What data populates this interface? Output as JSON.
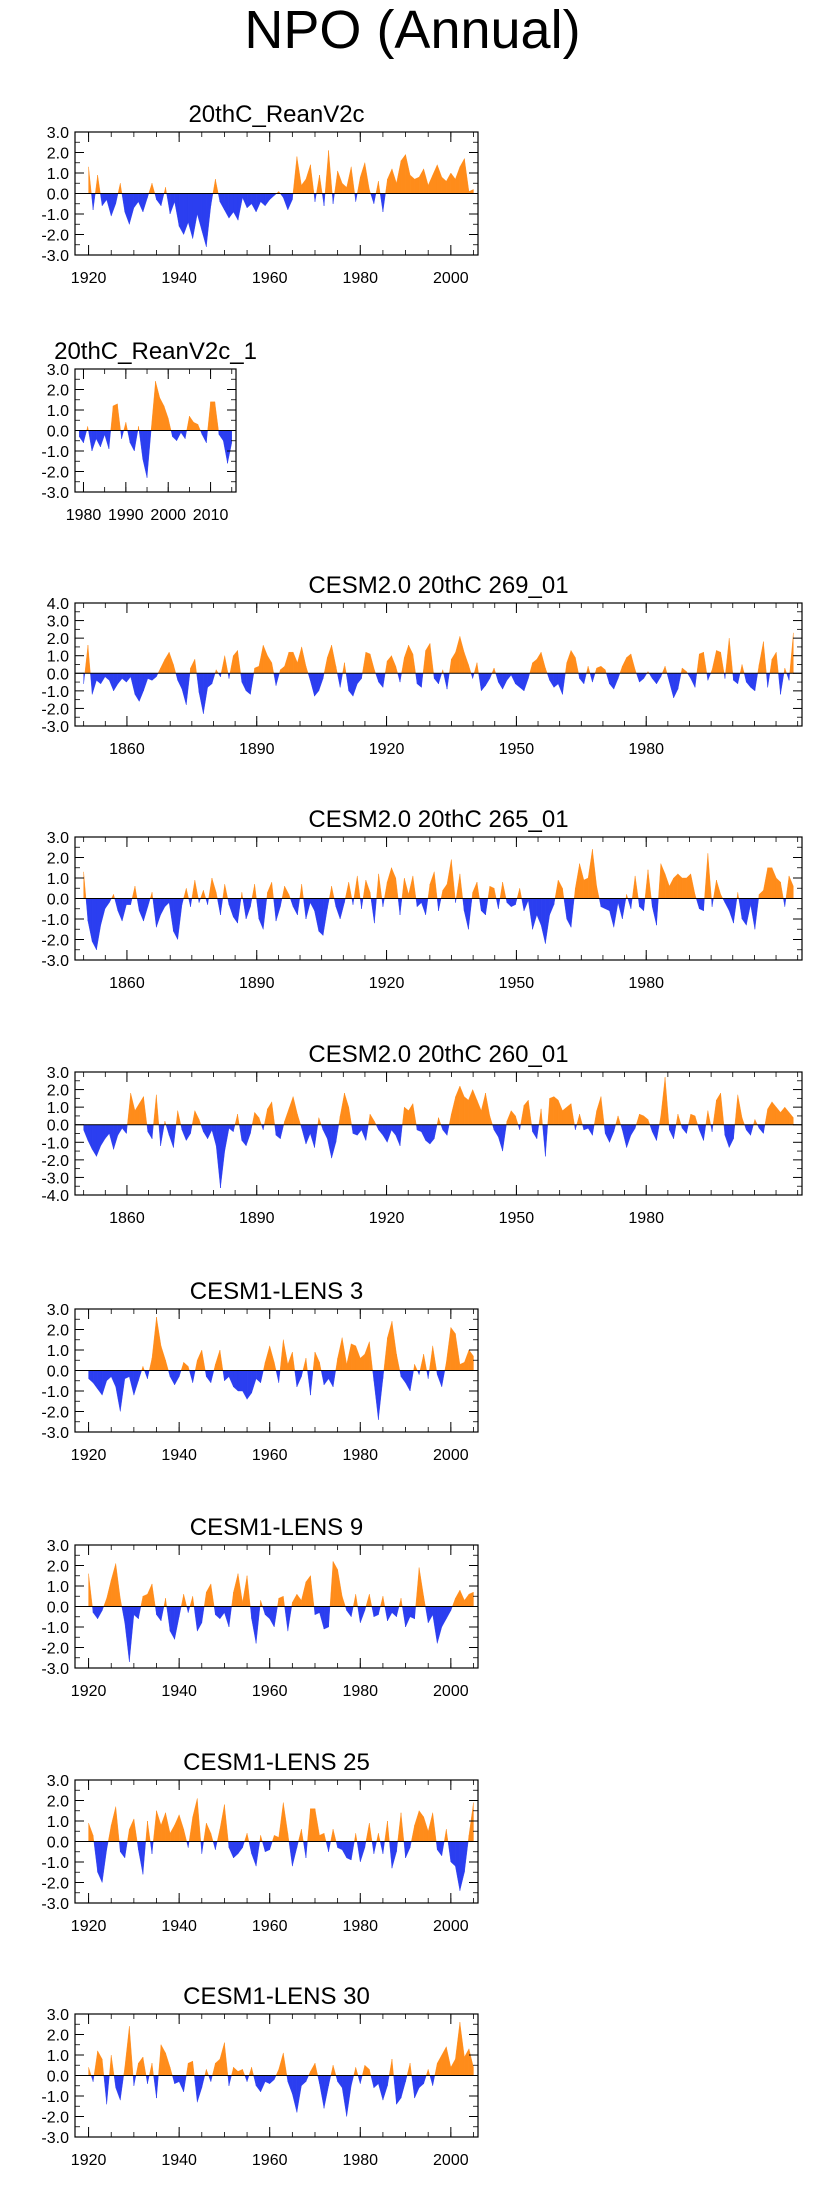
{
  "figure": {
    "title": "NPO (Annual)"
  },
  "colors": {
    "positive": "#ff8c1a",
    "negative": "#2b3ef0",
    "axis": "#000000"
  },
  "chart_data": [
    {
      "type": "area",
      "title": "20thC_ReanV2c",
      "xlim": [
        1917,
        2006
      ],
      "ylim": [
        -3,
        3
      ],
      "yticks": [
        "3.0",
        "2.0",
        "1.0",
        "0.0",
        "-1.0",
        "-2.0",
        "-3.0"
      ],
      "xticks": [
        "1920",
        "1940",
        "1960",
        "1980",
        "2000"
      ],
      "x_start": 1920,
      "x_end": 2005,
      "values": [
        1.3,
        -0.8,
        0.9,
        -0.6,
        -0.3,
        -1.1,
        -0.5,
        0.5,
        -0.9,
        -1.5,
        -0.7,
        -0.4,
        -0.9,
        -0.2,
        0.5,
        -0.3,
        -0.6,
        0.3,
        -1.0,
        -0.4,
        -1.6,
        -2.0,
        -1.4,
        -2.2,
        -1.0,
        -1.8,
        -2.6,
        -0.6,
        0.7,
        -0.4,
        -0.8,
        -1.2,
        -0.9,
        -1.3,
        -0.2,
        -0.7,
        -0.5,
        -0.9,
        -0.4,
        -0.6,
        -0.3,
        -0.1,
        0.1,
        -0.2,
        -0.8,
        -0.3,
        1.8,
        0.4,
        0.7,
        1.4,
        -0.4,
        0.9,
        -0.6,
        2.1,
        -0.5,
        1.1,
        0.5,
        0.3,
        1.3,
        -0.4,
        0.8,
        1.5,
        0.2,
        -0.5,
        0.6,
        -0.9,
        0.7,
        1.2,
        0.5,
        1.6,
        1.9,
        0.9,
        0.7,
        0.8,
        1.2,
        0.4,
        0.9,
        1.4,
        0.8,
        0.6,
        1.0,
        0.7,
        1.3,
        1.7,
        0.1,
        0.2
      ]
    },
    {
      "type": "area",
      "title": "20thC_ReanV2c_1",
      "xlim": [
        1978,
        2016
      ],
      "ylim": [
        -3,
        3
      ],
      "yticks": [
        "3.0",
        "2.0",
        "1.0",
        "0.0",
        "-1.0",
        "-2.0",
        "-3.0"
      ],
      "xticks": [
        "1980",
        "1990",
        "2000",
        "2010"
      ],
      "x_start": 1979,
      "x_end": 2015,
      "values": [
        -0.3,
        -0.6,
        0.2,
        -1.0,
        -0.4,
        -0.8,
        -0.2,
        -0.9,
        1.2,
        1.3,
        -0.4,
        0.4,
        -0.6,
        -1.0,
        0.2,
        -1.4,
        -2.3,
        0.1,
        2.4,
        1.6,
        1.2,
        0.6,
        -0.3,
        -0.5,
        -0.1,
        -0.4,
        0.7,
        0.4,
        0.3,
        -0.2,
        -0.6,
        1.4,
        1.4,
        -0.2,
        -0.5,
        -1.6,
        -0.6
      ]
    },
    {
      "type": "area",
      "title": "CESM2.0 20thC 269_01",
      "xlim": [
        1848,
        2016
      ],
      "ylim": [
        -3,
        4
      ],
      "yticks": [
        "4.0",
        "3.0",
        "2.0",
        "1.0",
        "0.0",
        "-1.0",
        "-2.0",
        "-3.0"
      ],
      "xticks": [
        "1860",
        "1890",
        "1920",
        "1950",
        "1980"
      ],
      "x_start": 1850,
      "x_end": 2014,
      "values": [
        -0.6,
        1.6,
        -1.2,
        -0.4,
        -0.6,
        -0.2,
        -0.4,
        -1.0,
        -0.6,
        -0.3,
        -0.5,
        -0.2,
        -1.2,
        -1.6,
        -1.0,
        -0.3,
        -0.4,
        -0.2,
        0.3,
        0.8,
        1.2,
        0.5,
        -0.4,
        -0.9,
        -1.8,
        0.3,
        0.8,
        -1.1,
        -2.3,
        -0.8,
        -0.6,
        0.2,
        -0.2,
        1.0,
        -0.3,
        1.0,
        1.3,
        -0.5,
        -1.0,
        -1.2,
        0.3,
        0.4,
        1.6,
        1.0,
        0.6,
        -0.7,
        0.2,
        0.4,
        1.2,
        1.2,
        0.6,
        1.5,
        0.4,
        -0.4,
        -1.3,
        -1.0,
        -0.3,
        0.9,
        1.6,
        0.4,
        -0.8,
        0.6,
        -1.0,
        -1.3,
        -0.6,
        -0.3,
        1.2,
        1.1,
        0.2,
        -0.5,
        -0.8,
        0.7,
        1.0,
        0.4,
        -0.5,
        0.9,
        1.6,
        1.1,
        -0.6,
        -0.8,
        1.3,
        1.7,
        -0.3,
        -0.6,
        0.2,
        -0.9,
        0.8,
        1.2,
        2.1,
        1.2,
        0.5,
        -0.3,
        0.6,
        -1.0,
        -0.7,
        -0.3,
        0.3,
        -0.5,
        -0.9,
        -0.4,
        -0.1,
        -0.6,
        -0.8,
        -1.0,
        -0.3,
        0.6,
        0.8,
        1.2,
        0.3,
        -0.4,
        -0.8,
        -0.6,
        -1.2,
        0.6,
        1.3,
        0.9,
        -0.3,
        -0.6,
        0.4,
        -0.5,
        0.3,
        0.4,
        0.2,
        -0.6,
        -0.9,
        -0.3,
        0.4,
        0.9,
        1.1,
        0.2,
        -0.5,
        -0.3,
        0.1,
        -0.3,
        -0.6,
        -0.2,
        0.4,
        -0.5,
        -1.4,
        -0.9,
        0.3,
        0.1,
        -0.3,
        -0.8,
        1.1,
        1.2,
        -0.4,
        0.2,
        1.3,
        1.2,
        -0.3,
        2.0,
        -0.4,
        -0.6,
        0.5,
        -0.5,
        -0.8,
        -1.0,
        0.5,
        1.8,
        -0.8,
        0.8,
        1.2,
        -1.2,
        0.3,
        -0.4,
        2.3
      ]
    },
    {
      "type": "area",
      "title": "CESM2.0 20thC 265_01",
      "xlim": [
        1848,
        2016
      ],
      "ylim": [
        -3,
        3
      ],
      "yticks": [
        "3.0",
        "2.0",
        "1.0",
        "0.0",
        "-1.0",
        "-2.0",
        "-3.0"
      ],
      "xticks": [
        "1860",
        "1890",
        "1920",
        "1950",
        "1980"
      ],
      "x_start": 1850,
      "x_end": 2014,
      "values": [
        1.3,
        -1.1,
        -2.1,
        -2.5,
        -1.3,
        -0.5,
        -0.2,
        0.2,
        -0.6,
        -1.1,
        -0.3,
        -0.3,
        0.6,
        -0.6,
        -1.1,
        -0.4,
        0.3,
        -1.4,
        -0.8,
        -0.4,
        -0.2,
        -1.6,
        -2.0,
        -0.3,
        0.5,
        -0.4,
        0.9,
        -0.2,
        0.4,
        -0.3,
        1.0,
        0.3,
        -0.8,
        0.7,
        -0.3,
        -0.9,
        -1.2,
        0.3,
        -1.0,
        -0.4,
        0.7,
        -1.0,
        -1.5,
        0.3,
        0.8,
        -1.1,
        -0.4,
        0.6,
        0.2,
        -0.4,
        -0.8,
        0.7,
        -1.0,
        -0.2,
        -0.6,
        -1.6,
        -1.8,
        -0.5,
        0.6,
        -0.4,
        -1.0,
        -0.2,
        0.8,
        -0.3,
        1.1,
        -0.5,
        0.9,
        0.3,
        -1.2,
        1.2,
        -0.4,
        0.8,
        1.5,
        1.0,
        -0.8,
        1.0,
        0.2,
        1.1,
        -0.4,
        -0.2,
        -0.8,
        0.7,
        1.3,
        -0.6,
        0.4,
        0.7,
        1.9,
        -0.2,
        1.2,
        -0.6,
        -1.5,
        0.3,
        0.8,
        -0.6,
        -0.8,
        0.6,
        0.5,
        -0.5,
        0.8,
        -0.2,
        -0.4,
        -0.3,
        0.5,
        -0.6,
        -0.1,
        -1.5,
        -0.8,
        -1.3,
        -2.2,
        -0.8,
        -0.3,
        0.9,
        0.5,
        -1.0,
        -1.4,
        0.5,
        1.7,
        0.9,
        1.0,
        2.4,
        0.6,
        -0.4,
        -0.5,
        -0.6,
        -1.4,
        -0.2,
        -1.0,
        0.2,
        -0.5,
        1.1,
        -0.4,
        -0.6,
        1.4,
        -0.4,
        -1.3,
        1.7,
        1.2,
        0.6,
        1.0,
        1.2,
        1.0,
        1.0,
        1.2,
        0.2,
        -0.5,
        -0.6,
        2.2,
        -0.4,
        0.9,
        0.2,
        -0.2,
        -0.6,
        -1.2,
        0.3,
        -1.0,
        -1.3,
        -0.3,
        -1.5,
        0.2,
        0.4,
        1.5,
        1.5,
        1.0,
        0.8,
        -0.4,
        1.1,
        0.6
      ]
    },
    {
      "type": "area",
      "title": "CESM2.0 20thC 260_01",
      "xlim": [
        1848,
        2016
      ],
      "ylim": [
        -4,
        3
      ],
      "yticks": [
        "3.0",
        "2.0",
        "1.0",
        "0.0",
        "-1.0",
        "-2.0",
        "-3.0",
        "-4.0"
      ],
      "xticks": [
        "1860",
        "1890",
        "1920",
        "1950",
        "1980"
      ],
      "x_start": 1850,
      "x_end": 2014,
      "values": [
        -0.3,
        -0.9,
        -1.4,
        -1.8,
        -1.2,
        -0.8,
        -0.5,
        -1.4,
        -0.6,
        -0.2,
        -0.5,
        1.8,
        0.8,
        1.2,
        1.6,
        -0.4,
        -0.8,
        1.7,
        -1.2,
        0.2,
        -0.6,
        -1.3,
        0.8,
        -0.3,
        -0.9,
        -0.5,
        0.8,
        0.3,
        -0.4,
        -0.8,
        -0.3,
        -1.2,
        -3.6,
        -1.5,
        -0.2,
        -0.4,
        0.6,
        -0.9,
        -1.2,
        -0.5,
        0.7,
        0.4,
        -0.3,
        0.9,
        1.3,
        -0.6,
        -0.8,
        0.2,
        0.9,
        1.6,
        0.6,
        -0.2,
        -1.1,
        -0.5,
        -1.3,
        0.4,
        -0.3,
        -0.8,
        -1.9,
        -1.0,
        0.5,
        1.8,
        1.0,
        -0.5,
        -0.6,
        -0.3,
        -0.9,
        0.6,
        0.2,
        -0.3,
        -0.6,
        -1.0,
        -0.3,
        -0.6,
        -1.2,
        1.0,
        0.8,
        1.2,
        -0.3,
        -0.4,
        -0.9,
        -1.1,
        -0.8,
        0.4,
        -0.3,
        -0.6,
        0.6,
        1.6,
        2.2,
        1.6,
        1.4,
        2.0,
        1.4,
        0.8,
        1.8,
        0.5,
        -0.3,
        -0.7,
        -1.5,
        0.2,
        0.8,
        0.5,
        -0.3,
        1.1,
        1.4,
        -0.4,
        -0.8,
        0.9,
        -1.8,
        1.5,
        1.6,
        1.4,
        0.8,
        1.0,
        1.2,
        -0.3,
        0.6,
        -0.3,
        -0.2,
        -0.6,
        0.8,
        1.6,
        -0.5,
        -1.0,
        -0.4,
        0.5,
        -0.3,
        -1.3,
        -0.6,
        -0.2,
        0.6,
        0.5,
        0.3,
        -0.4,
        -0.9,
        0.5,
        2.7,
        -0.3,
        -0.8,
        0.6,
        -0.2,
        -0.5,
        0.6,
        0.5,
        -0.3,
        -0.9,
        0.8,
        -0.4,
        1.4,
        1.8,
        -0.6,
        -1.3,
        -0.8,
        1.7,
        0.4,
        -0.3,
        -0.6,
        0.3,
        -0.2,
        -0.5,
        0.9,
        1.3,
        1.0,
        0.7,
        1.0,
        0.7,
        0.4
      ]
    },
    {
      "type": "area",
      "title": "CESM1-LENS 3",
      "xlim": [
        1917,
        2006
      ],
      "ylim": [
        -3,
        3
      ],
      "yticks": [
        "3.0",
        "2.0",
        "1.0",
        "0.0",
        "-1.0",
        "-2.0",
        "-3.0"
      ],
      "xticks": [
        "1920",
        "1940",
        "1960",
        "1980",
        "2000"
      ],
      "x_start": 1920,
      "x_end": 2005,
      "values": [
        -0.4,
        -0.6,
        -0.9,
        -1.2,
        -0.5,
        -0.3,
        -0.8,
        -2.0,
        -0.4,
        -0.3,
        -1.2,
        -0.5,
        0.2,
        -0.4,
        0.6,
        2.6,
        1.2,
        0.5,
        -0.3,
        -0.7,
        -0.3,
        0.4,
        0.2,
        -0.6,
        0.5,
        1.0,
        -0.3,
        -0.6,
        0.3,
        1.0,
        -0.5,
        -0.3,
        -0.8,
        -1.0,
        -1.0,
        -1.4,
        -1.1,
        -0.4,
        -0.6,
        0.4,
        1.2,
        0.4,
        -0.6,
        1.5,
        0.3,
        0.9,
        -0.8,
        -0.3,
        0.6,
        -1.2,
        0.9,
        0.4,
        -0.7,
        -0.4,
        -0.8,
        0.6,
        1.6,
        0.3,
        1.3,
        1.2,
        0.6,
        0.8,
        1.4,
        -0.5,
        -2.4,
        -0.4,
        1.6,
        2.4,
        0.8,
        -0.3,
        -0.6,
        -1.0,
        0.3,
        -0.2,
        0.8,
        -0.4,
        1.2,
        -0.2,
        -0.8,
        0.4,
        2.1,
        1.8,
        0.3,
        0.4,
        1.0,
        0.7
      ]
    },
    {
      "type": "area",
      "title": "CESM1-LENS 9",
      "xlim": [
        1917,
        2006
      ],
      "ylim": [
        -3,
        3
      ],
      "yticks": [
        "3.0",
        "2.0",
        "1.0",
        "0.0",
        "-1.0",
        "-2.0",
        "-3.0"
      ],
      "xticks": [
        "1920",
        "1940",
        "1960",
        "1980",
        "2000"
      ],
      "x_start": 1920,
      "x_end": 2005,
      "values": [
        1.6,
        -0.3,
        -0.6,
        -0.2,
        0.4,
        1.3,
        2.1,
        0.4,
        -0.8,
        -2.7,
        -0.4,
        -0.6,
        0.5,
        0.6,
        1.1,
        -0.4,
        -0.7,
        0.4,
        -1.2,
        -1.6,
        -0.5,
        0.6,
        -0.3,
        0.5,
        -1.2,
        -0.8,
        0.7,
        1.1,
        -0.4,
        -0.6,
        -0.3,
        -1.0,
        0.7,
        1.6,
        0.2,
        1.5,
        -0.6,
        -1.8,
        0.3,
        -0.4,
        -0.6,
        -1.0,
        0.4,
        0.5,
        -1.2,
        0.2,
        0.6,
        0.3,
        1.2,
        1.5,
        -0.4,
        -0.3,
        -1.1,
        -1.0,
        2.2,
        1.8,
        0.5,
        -0.2,
        -0.5,
        0.6,
        -0.8,
        -0.2,
        0.6,
        -0.5,
        -0.4,
        0.5,
        -0.7,
        -0.3,
        -0.5,
        0.4,
        -1.0,
        -0.5,
        -0.6,
        1.9,
        0.5,
        -0.8,
        -0.4,
        -1.8,
        -1.0,
        -0.6,
        -0.2,
        0.4,
        0.8,
        0.3,
        0.6,
        0.7
      ]
    },
    {
      "type": "area",
      "title": "CESM1-LENS 25",
      "xlim": [
        1917,
        2006
      ],
      "ylim": [
        -3,
        3
      ],
      "yticks": [
        "3.0",
        "2.0",
        "1.0",
        "0.0",
        "-1.0",
        "-2.0",
        "-3.0"
      ],
      "xticks": [
        "1920",
        "1940",
        "1960",
        "1980",
        "2000"
      ],
      "x_start": 1920,
      "x_end": 2005,
      "values": [
        0.9,
        0.3,
        -1.5,
        -2.0,
        -0.4,
        0.8,
        1.7,
        -0.5,
        -0.8,
        0.6,
        1.1,
        -0.4,
        -1.6,
        1.0,
        -0.6,
        1.5,
        0.8,
        1.4,
        0.4,
        0.8,
        1.3,
        0.6,
        -0.3,
        1.2,
        2.1,
        -0.6,
        0.9,
        0.4,
        -0.4,
        0.6,
        1.8,
        -0.3,
        -0.8,
        -0.6,
        -0.3,
        0.4,
        -0.6,
        -1.2,
        0.3,
        -0.5,
        -0.4,
        0.3,
        0.2,
        1.9,
        0.4,
        -1.2,
        -0.3,
        0.6,
        -0.8,
        1.6,
        1.6,
        0.3,
        0.4,
        -0.5,
        0.6,
        -0.3,
        -0.4,
        -0.8,
        -0.9,
        0.4,
        -1.0,
        -0.3,
        0.9,
        -0.6,
        0.4,
        -0.6,
        1.0,
        -1.3,
        -0.5,
        1.4,
        -0.8,
        -0.3,
        0.8,
        1.5,
        1.2,
        0.5,
        1.4,
        -0.4,
        -0.7,
        0.6,
        -1.0,
        -1.2,
        -2.4,
        -1.5,
        0.3,
        1.9
      ]
    },
    {
      "type": "area",
      "title": "CESM1-LENS 30",
      "xlim": [
        1917,
        2006
      ],
      "ylim": [
        -3,
        3
      ],
      "yticks": [
        "3.0",
        "2.0",
        "1.0",
        "0.0",
        "-1.0",
        "-2.0",
        "-3.0"
      ],
      "xticks": [
        "1920",
        "1940",
        "1960",
        "1980",
        "2000"
      ],
      "x_start": 1920,
      "x_end": 2005,
      "values": [
        0.4,
        -0.3,
        1.2,
        0.8,
        -1.4,
        1.0,
        -0.6,
        -1.2,
        0.4,
        2.4,
        -0.5,
        0.6,
        0.9,
        -0.4,
        0.6,
        -1.1,
        1.5,
        1.1,
        0.4,
        -0.4,
        -0.3,
        -0.8,
        0.6,
        0.7,
        -1.3,
        -0.6,
        0.3,
        -0.3,
        0.6,
        0.8,
        1.6,
        -0.5,
        0.4,
        0.2,
        0.3,
        -0.3,
        0.4,
        -0.5,
        -0.8,
        -0.3,
        -0.4,
        -0.2,
        0.3,
        1.1,
        -0.3,
        -0.9,
        -1.8,
        -0.5,
        -0.3,
        0.2,
        0.6,
        -0.4,
        -1.6,
        -0.5,
        0.5,
        -0.3,
        -0.6,
        -2.0,
        -0.5,
        0.4,
        -0.4,
        0.5,
        0.3,
        -0.6,
        -0.4,
        -1.2,
        -0.5,
        0.8,
        -1.4,
        -1.1,
        -0.3,
        0.6,
        -1.1,
        -0.6,
        -0.4,
        0.3,
        -0.5,
        0.6,
        1.0,
        1.4,
        0.4,
        0.8,
        2.6,
        0.9,
        1.3,
        0.4
      ]
    }
  ]
}
